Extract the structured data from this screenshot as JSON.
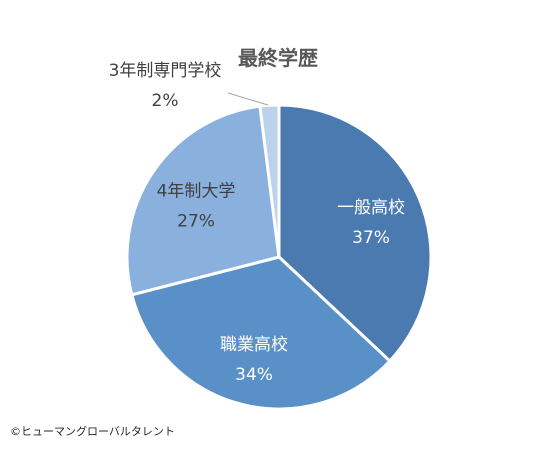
{
  "chart_data": {
    "type": "pie",
    "title": "最終学歴",
    "categories": [
      "一般高校",
      "職業高校",
      "4年制大学",
      "3年制専門学校"
    ],
    "values": [
      37,
      34,
      27,
      2
    ],
    "value_labels": [
      "37%",
      "34%",
      "27%",
      "2%"
    ],
    "colors": [
      "#4a7ab0",
      "#5a90c8",
      "#8ab0de",
      "#bcd1eb"
    ],
    "legend": "none",
    "start_angle_deg": 0,
    "direction": "clockwise"
  },
  "footer": {
    "copyright": "©ヒューマングローバルタレント"
  }
}
